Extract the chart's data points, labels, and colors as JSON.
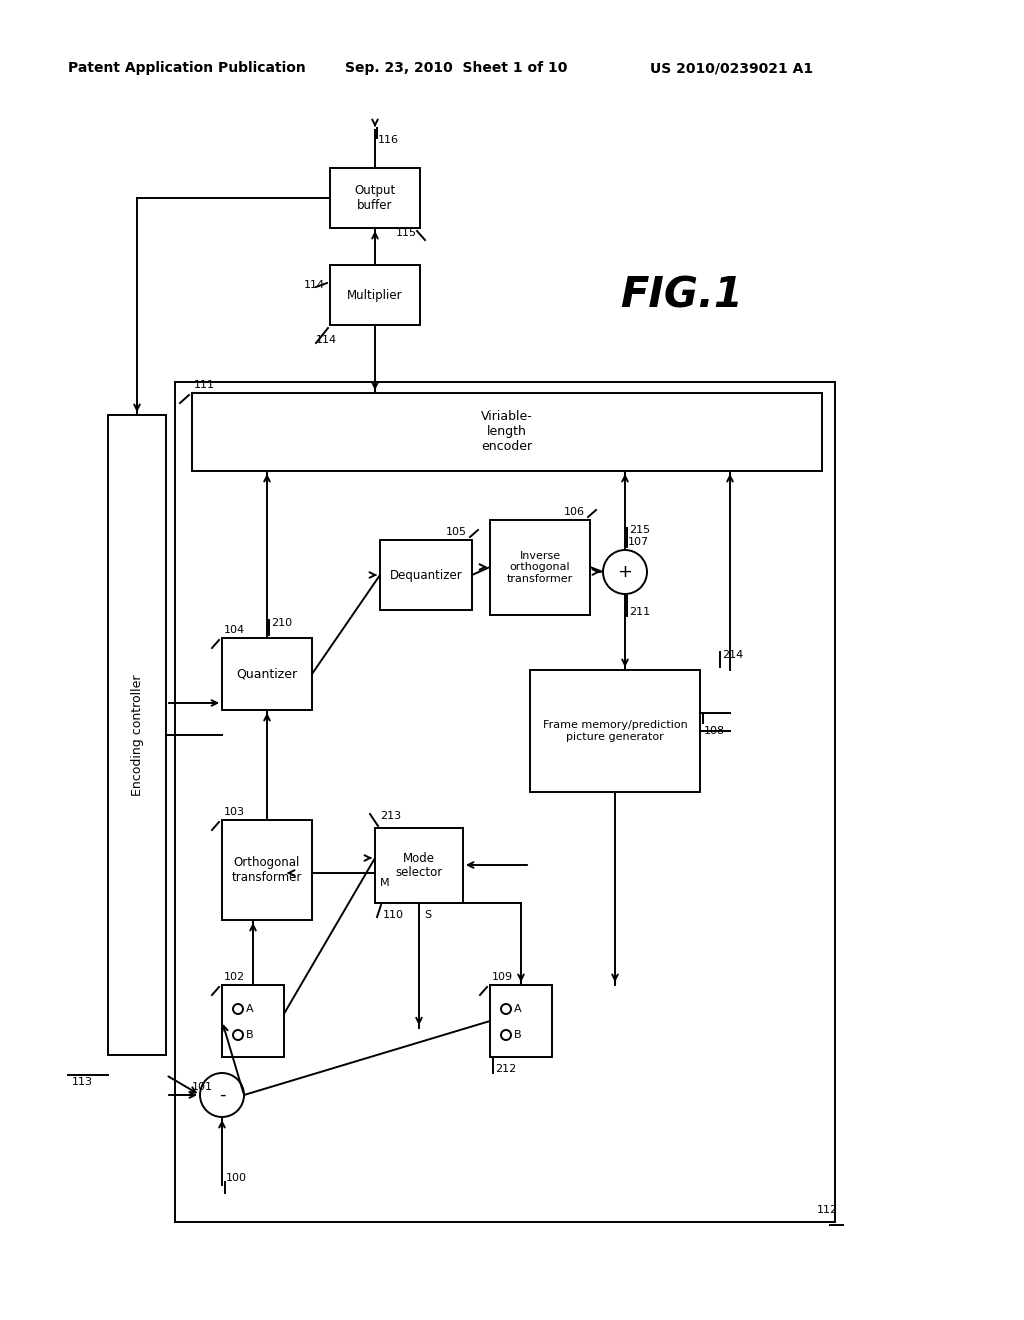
{
  "header_left": "Patent Application Publication",
  "header_mid": "Sep. 23, 2010  Sheet 1 of 10",
  "header_right": "US 2010/0239021 A1",
  "fig_label": "FIG. 1",
  "background_color": "#ffffff",
  "line_color": "#000000"
}
